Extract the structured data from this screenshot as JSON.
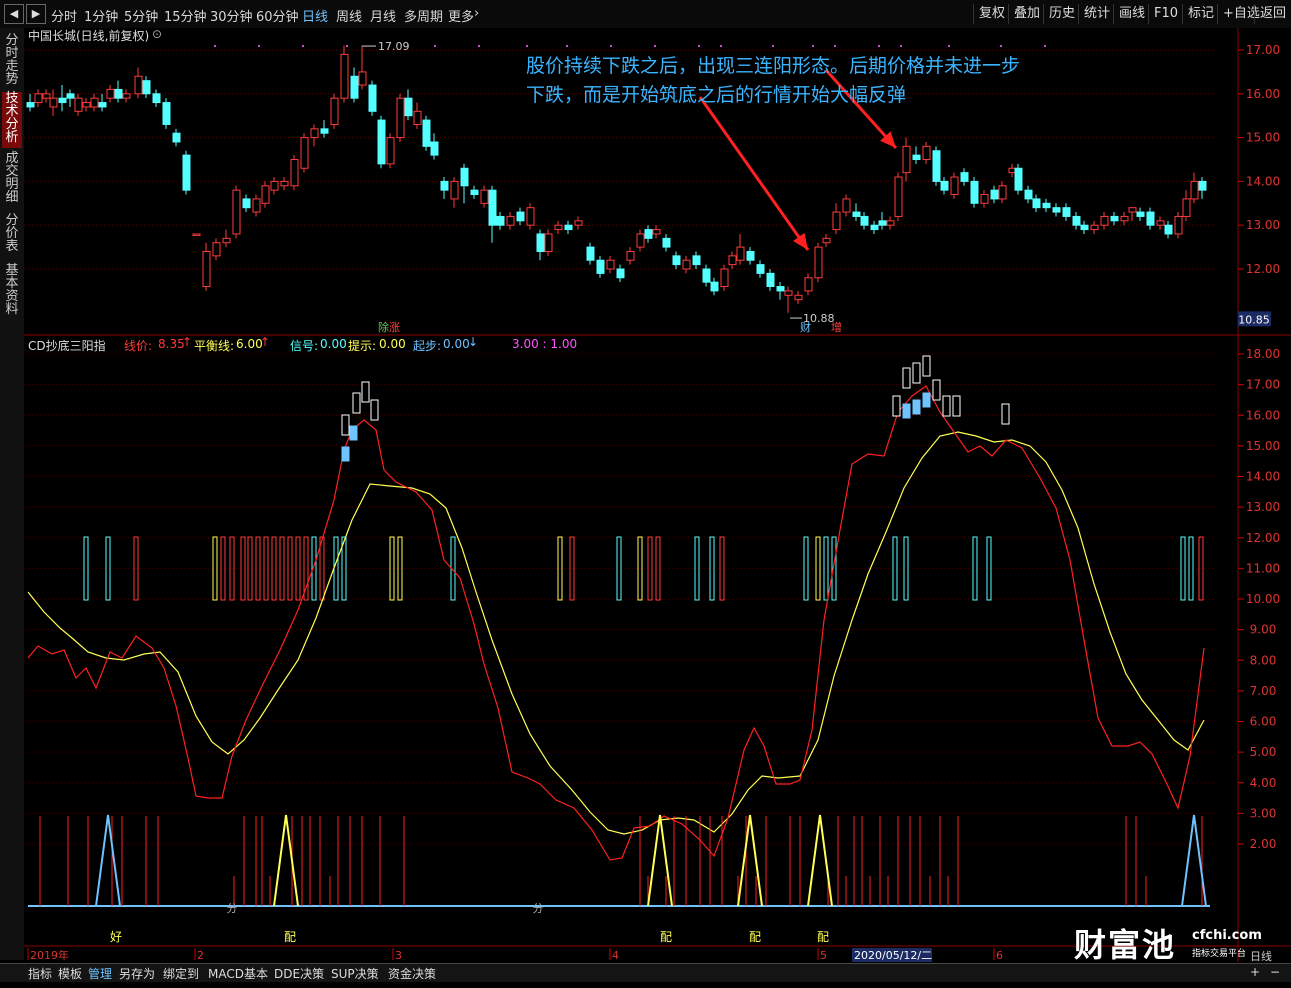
{
  "toolbar": {
    "periods": [
      "分时",
      "1分钟",
      "5分钟",
      "15分钟",
      "30分钟",
      "60分钟",
      "日线",
      "周线",
      "月线",
      "多周期",
      "更多"
    ],
    "selected_period": "日线",
    "right_buttons": [
      "复权",
      "叠加",
      "历史",
      "统计",
      "画线",
      "F10",
      "标记",
      "+自选",
      "返回"
    ]
  },
  "sidebar": {
    "tabs": [
      "分时走势",
      "技术分析",
      "成交明细",
      "分价表",
      "基本资料"
    ],
    "active": "技术分析"
  },
  "main_chart": {
    "title": "中国长城(日线,前复权)",
    "high_label": "17.09",
    "low_label": "10.88",
    "current_price": "10.85",
    "y_ticks": [
      "17.00",
      "16.00",
      "15.00",
      "14.00",
      "13.00",
      "12.00"
    ],
    "markers": [
      "除",
      "涨",
      "财",
      "增"
    ],
    "annotation_line1": "股价持续下跌之后，出现三连阳形态。后期价格并未进一步",
    "annotation_line2": "下跌，而是开始筑底之后的行情开始大幅反弹",
    "up_color": "#ff3b3b",
    "down_color": "#54ffff"
  },
  "indicator": {
    "name": "CD抄底三阳指",
    "line_label": "线价:",
    "line_value": "8.35",
    "balance_label": "平衡线:",
    "balance_value": "6.00",
    "signal_label": "信号:",
    "signal_value": "0.00",
    "hint_label": "提示:",
    "hint_value": "0.00",
    "start_label": "起步:",
    "start_value": "0.00",
    "extra_value": "3.00 : 1.00",
    "y_ticks": [
      "18.00",
      "17.00",
      "16.00",
      "15.00",
      "14.00",
      "13.00",
      "12.00",
      "11.00",
      "10.00",
      "9.00",
      "8.00",
      "7.00",
      "6.00",
      "5.00",
      "4.00",
      "3.00",
      "2.00"
    ],
    "bottom_labels": [
      "好",
      "配",
      "配",
      "配",
      "配",
      "分",
      "分"
    ]
  },
  "date_axis": {
    "labels": [
      "2019年",
      "2",
      "3",
      "4",
      "5",
      "2020/05/12/二",
      "6"
    ],
    "right_label": "日线"
  },
  "bottom_bar": {
    "items": [
      "指标",
      "模板",
      "管理",
      "另存为",
      "绑定到",
      "MACD基本",
      "DDE决策",
      "SUP决策",
      "资金决策"
    ],
    "selected": "管理"
  },
  "logo": {
    "main": "财富池",
    "url": "cfchi.com",
    "sub": "指标交易平台"
  }
}
